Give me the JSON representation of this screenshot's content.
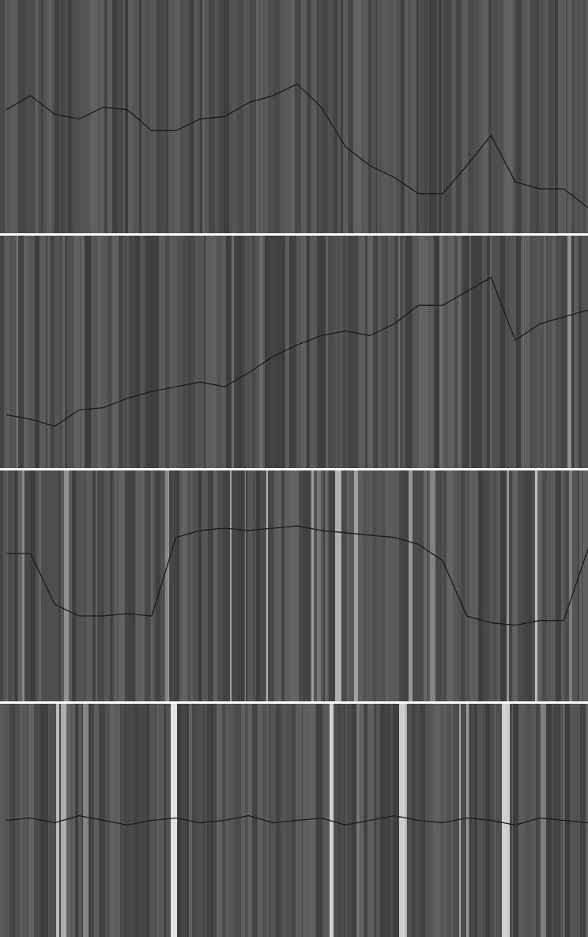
{
  "chart_data": [
    {
      "type": "line",
      "ylim": [
        0,
        100
      ],
      "color": "#1a1a1a",
      "values": [
        53,
        59,
        51,
        49,
        54,
        53,
        44,
        44,
        49,
        50,
        56,
        59,
        64,
        54,
        37,
        29,
        24,
        17,
        17,
        29,
        42,
        22,
        19,
        19,
        11
      ]
    },
    {
      "type": "line",
      "ylim": [
        0,
        100
      ],
      "color": "#1a1a1a",
      "values": [
        23,
        21,
        18,
        25,
        26,
        30,
        33,
        35,
        37,
        35,
        41,
        48,
        53,
        57,
        59,
        57,
        62,
        70,
        70,
        76,
        82,
        55,
        62,
        65,
        68
      ]
    },
    {
      "type": "line",
      "ylim": [
        0,
        100
      ],
      "color": "#1a1a1a",
      "values": [
        64,
        64,
        42,
        37,
        37,
        38,
        37,
        71,
        74,
        75,
        74,
        75,
        76,
        74,
        73,
        72,
        71,
        68,
        61,
        37,
        34,
        33,
        35,
        35,
        66
      ]
    },
    {
      "type": "line",
      "ylim": [
        0,
        100
      ],
      "color": "#1a1a1a",
      "values": [
        50,
        51,
        49,
        52,
        50,
        48,
        50,
        51,
        49,
        50,
        52,
        49,
        50,
        51,
        48,
        50,
        52,
        50,
        49,
        51,
        50,
        48,
        51,
        50,
        49
      ]
    }
  ]
}
